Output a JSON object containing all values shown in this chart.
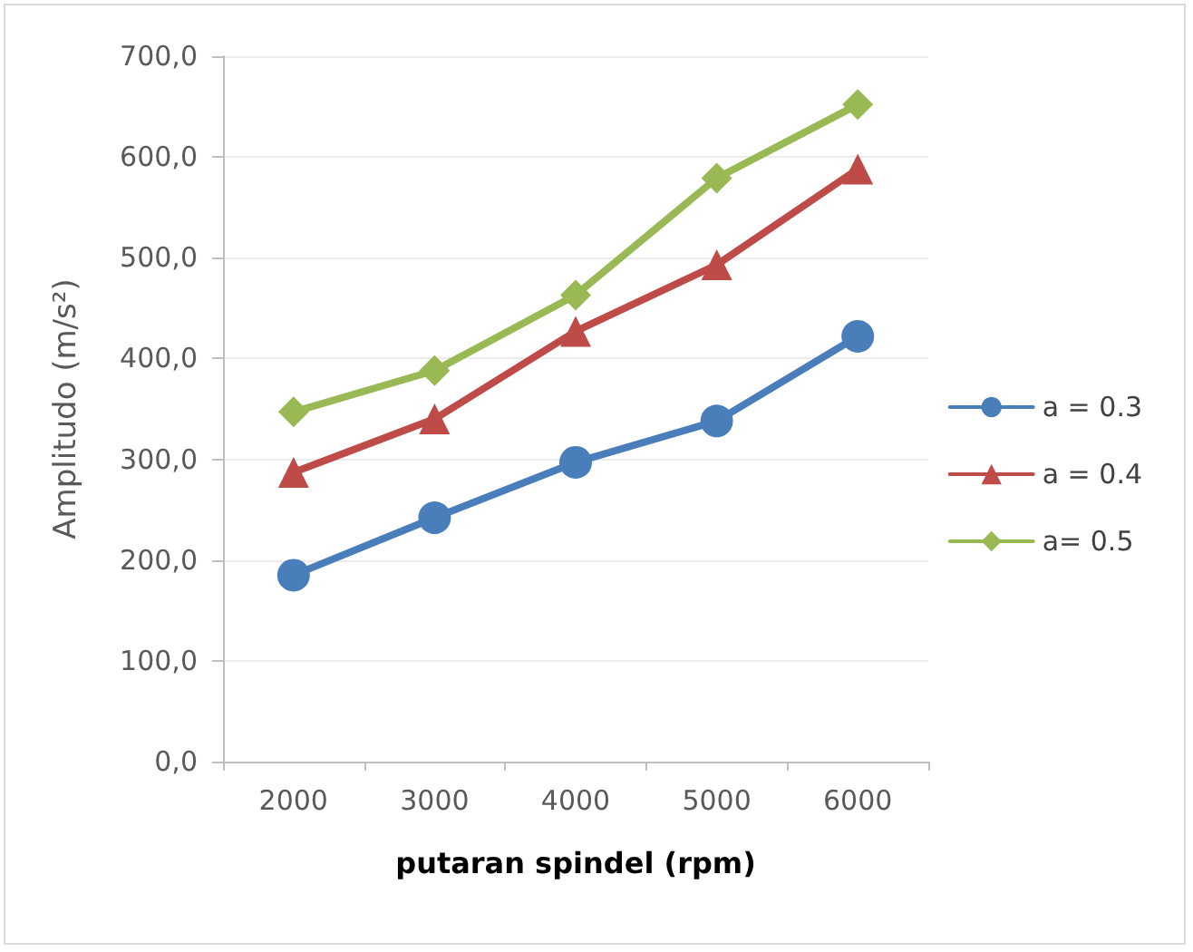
{
  "chart_data": {
    "type": "line",
    "xlabel": "putaran spindel (rpm)",
    "ylabel": "Amplitudo (m/s²)",
    "categories": [
      "2000",
      "3000",
      "4000",
      "5000",
      "6000"
    ],
    "ylim": [
      0,
      700
    ],
    "yticks": [
      {
        "value": 0,
        "label": "0,0"
      },
      {
        "value": 100,
        "label": "100,0"
      },
      {
        "value": 200,
        "label": "200,0"
      },
      {
        "value": 300,
        "label": "300,0"
      },
      {
        "value": 400,
        "label": "400,0"
      },
      {
        "value": 500,
        "label": "500,0"
      },
      {
        "value": 600,
        "label": "600,0"
      },
      {
        "value": 700,
        "label": "700,0"
      }
    ],
    "grid": "y",
    "legend": "right",
    "line_style": "solid",
    "series": [
      {
        "name": "a = 0.3",
        "color": "#4a7ebb",
        "marker": "circle",
        "values": [
          185,
          242,
          297,
          338,
          422
        ]
      },
      {
        "name": "a = 0.4",
        "color": "#be4b48",
        "marker": "triangle",
        "values": [
          287,
          340,
          427,
          493,
          588
        ]
      },
      {
        "name": "a= 0.5",
        "color": "#98b954",
        "marker": "diamond",
        "values": [
          347,
          388,
          463,
          579,
          652
        ]
      }
    ]
  }
}
